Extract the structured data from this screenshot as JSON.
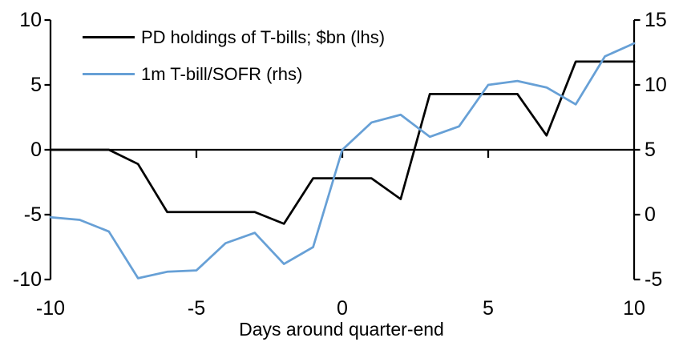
{
  "chart_data": {
    "type": "line",
    "title": "",
    "xlabel": "Days around quarter-end",
    "x": [
      -10,
      -9,
      -8,
      -7,
      -6,
      -5,
      -4,
      -3,
      -2,
      -1,
      0,
      1,
      2,
      3,
      4,
      5,
      6,
      7,
      8,
      9,
      10
    ],
    "x_ticks": [
      -10,
      -5,
      0,
      5,
      10
    ],
    "grid": false,
    "legend_position": "top-left",
    "background_color": "#FFFFFF",
    "axis_color": "#000000",
    "axes": {
      "left": {
        "range": [
          -10,
          10
        ],
        "ticks": [
          10,
          5,
          0,
          -5,
          -10
        ]
      },
      "right": {
        "range": [
          -5,
          15
        ],
        "ticks": [
          15,
          10,
          5,
          0,
          -5
        ]
      }
    },
    "series": [
      {
        "id": "pd-holdings-line",
        "name": "PD holdings of T-bills; $bn (lhs)",
        "axis": "left",
        "color": "#000000",
        "values": [
          0,
          0,
          0,
          -1.1,
          -4.8,
          -4.8,
          -4.8,
          -4.8,
          -5.7,
          -2.2,
          -2.2,
          -2.2,
          -3.8,
          4.3,
          4.3,
          4.3,
          4.3,
          1.1,
          6.8,
          6.8,
          6.8
        ]
      },
      {
        "id": "tbill-sofr-line",
        "name": "1m T-bill/SOFR (rhs)",
        "axis": "right",
        "color": "#67A0D6",
        "values": [
          -0.2,
          -0.4,
          -1.3,
          -4.9,
          -4.4,
          -4.3,
          -2.2,
          -1.4,
          -3.8,
          -2.5,
          5.0,
          7.1,
          7.7,
          6.0,
          6.8,
          10.0,
          10.3,
          9.8,
          8.5,
          12.2,
          13.2
        ]
      }
    ]
  }
}
